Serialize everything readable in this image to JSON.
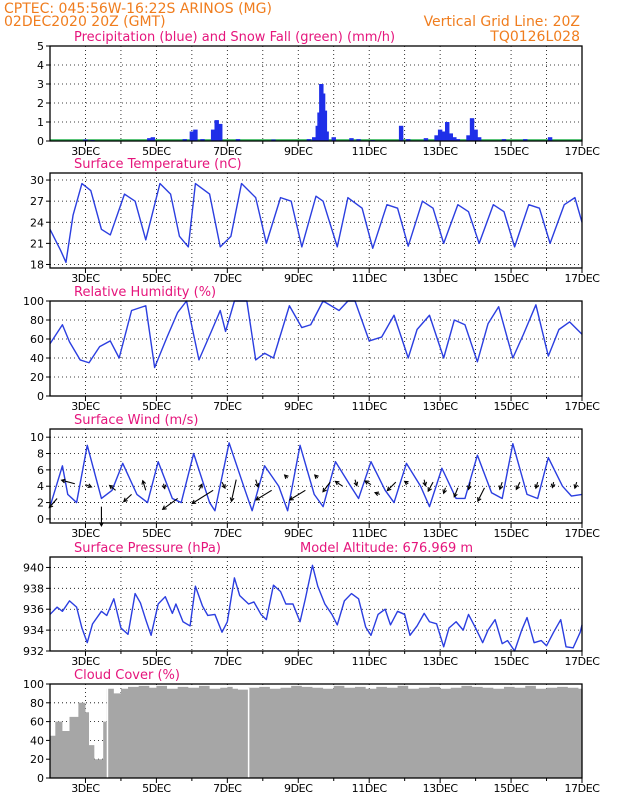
{
  "header": {
    "line1": "CPTEC:   045:56W-16:22S   ARINOS (MG)",
    "line2": "02DEC2020 20Z (GMT)",
    "grid_note": "Vertical Grid Line: 20Z",
    "run_code": "TQ0126L028"
  },
  "colors": {
    "header": "#f07d1e",
    "panel_title": "#e5157c",
    "series_line": "#2b3ee0",
    "precip": "#1f2fe8",
    "snow": "#22b14c",
    "cloud": "#a6a6a6",
    "grid": "#000000"
  },
  "x_axis": {
    "start_day": 2,
    "end_day": 17,
    "tick_labels": [
      "3DEC",
      "5DEC",
      "7DEC",
      "9DEC",
      "11DEC",
      "13DEC",
      "15DEC",
      "17DEC"
    ]
  },
  "chart_data": [
    {
      "type": "bar",
      "title": "Precipitation (blue) and Snow Fall (green) (mm/h)",
      "ylim": [
        0,
        5
      ],
      "yticks": [
        "0",
        "1",
        "2",
        "3",
        "4",
        "5"
      ],
      "series": [
        {
          "name": "Precipitation",
          "color": "#1f2fe8",
          "x": [
            3.0,
            3.2,
            4.8,
            4.9,
            5.8,
            6.0,
            6.1,
            6.3,
            6.6,
            6.7,
            6.8,
            7.3,
            8.3,
            9.3,
            9.45,
            9.55,
            9.6,
            9.65,
            9.7,
            9.75,
            9.8,
            10.0,
            10.5,
            10.7,
            11.1,
            11.9,
            12.1,
            12.6,
            12.9,
            13.0,
            13.1,
            13.2,
            13.3,
            13.4,
            13.5,
            13.8,
            13.9,
            14.0,
            14.1,
            14.8,
            15.4,
            16.1
          ],
          "values": [
            0.08,
            0.05,
            0.15,
            0.2,
            0.1,
            0.5,
            0.6,
            0.1,
            0.6,
            1.1,
            0.9,
            0.1,
            0.08,
            0.1,
            0.2,
            0.8,
            1.5,
            3.0,
            2.5,
            1.6,
            0.5,
            0.2,
            0.15,
            0.1,
            0.05,
            0.8,
            0.1,
            0.15,
            0.3,
            0.6,
            0.5,
            1.0,
            0.4,
            0.2,
            0.1,
            0.3,
            1.2,
            0.6,
            0.2,
            0.1,
            0.1,
            0.2
          ]
        },
        {
          "name": "Snow Fall",
          "color": "#22b14c",
          "x": [
            2,
            17
          ],
          "values": [
            0,
            0
          ]
        }
      ]
    },
    {
      "type": "line",
      "title": "Surface Temperature (nC)",
      "ylim": [
        17.5,
        31
      ],
      "yticks": [
        18,
        21,
        24,
        27,
        30
      ],
      "series": [
        {
          "name": "",
          "color": "#2b3ee0",
          "x": [
            2.0,
            2.3,
            2.45,
            2.65,
            2.9,
            3.15,
            3.45,
            3.7,
            4.1,
            4.4,
            4.7,
            5.1,
            5.4,
            5.65,
            5.9,
            6.1,
            6.5,
            6.8,
            7.1,
            7.4,
            7.8,
            8.1,
            8.5,
            8.8,
            9.1,
            9.5,
            9.7,
            10.1,
            10.4,
            10.8,
            11.1,
            11.5,
            11.8,
            12.1,
            12.5,
            12.8,
            13.1,
            13.5,
            13.8,
            14.1,
            14.5,
            14.8,
            15.1,
            15.5,
            15.8,
            16.1,
            16.5,
            16.8,
            17.0
          ],
          "values": [
            23,
            20,
            18.3,
            25,
            29.5,
            28.5,
            23,
            22.2,
            28,
            27,
            21.5,
            29.5,
            28,
            22,
            20.5,
            29.5,
            28,
            20.5,
            22,
            29.5,
            27.5,
            21,
            27.5,
            27,
            20.5,
            27.7,
            27,
            20.5,
            27.5,
            26,
            20.3,
            26.5,
            26,
            20.6,
            27,
            26,
            21,
            26.5,
            25.5,
            21,
            26.5,
            25.5,
            20.5,
            26.5,
            26,
            21,
            26.5,
            27.5,
            24
          ]
        }
      ]
    },
    {
      "type": "line",
      "title": "Relative Humidity (%)",
      "ylim": [
        0,
        100
      ],
      "yticks": [
        0,
        20,
        40,
        60,
        80,
        100
      ],
      "series": [
        {
          "name": "",
          "color": "#2b3ee0",
          "x": [
            2.0,
            2.35,
            2.55,
            2.85,
            3.1,
            3.4,
            3.7,
            3.95,
            4.3,
            4.7,
            4.95,
            5.3,
            5.6,
            5.85,
            6.2,
            6.55,
            6.8,
            6.95,
            7.2,
            7.55,
            7.8,
            8.05,
            8.3,
            8.75,
            9.1,
            9.35,
            9.7,
            10.15,
            10.4,
            10.6,
            11.0,
            11.35,
            11.7,
            12.1,
            12.35,
            12.7,
            13.1,
            13.4,
            13.7,
            14.05,
            14.35,
            14.65,
            15.05,
            15.35,
            15.7,
            16.05,
            16.35,
            16.65,
            17.0
          ],
          "values": [
            55,
            75,
            57,
            38,
            35,
            52,
            58,
            40,
            90,
            95,
            30,
            62,
            88,
            100,
            38,
            68,
            90,
            68,
            100,
            100,
            38,
            45,
            40,
            95,
            72,
            75,
            100,
            90,
            100,
            100,
            58,
            62,
            85,
            40,
            70,
            85,
            40,
            80,
            75,
            36,
            76,
            94,
            40,
            65,
            96,
            42,
            70,
            78,
            65
          ]
        }
      ]
    },
    {
      "type": "line",
      "title": "Surface Wind (m/s)",
      "ylim": [
        -0.5,
        11
      ],
      "yticks": [
        0,
        2,
        4,
        6,
        8,
        10
      ],
      "series": [
        {
          "name": "",
          "color": "#2b3ee0",
          "x": [
            2.0,
            2.35,
            2.5,
            2.75,
            3.05,
            3.45,
            3.75,
            4.05,
            4.45,
            4.75,
            5.05,
            5.45,
            5.7,
            6.05,
            6.5,
            6.65,
            7.05,
            7.5,
            7.7,
            8.05,
            8.45,
            8.7,
            9.05,
            9.45,
            9.7,
            10.05,
            10.45,
            10.7,
            11.05,
            11.45,
            11.7,
            12.05,
            12.45,
            12.7,
            13.05,
            13.45,
            13.7,
            14.05,
            14.45,
            14.75,
            15.05,
            15.45,
            15.75,
            16.05,
            16.45,
            16.7,
            17.0
          ],
          "values": [
            1.5,
            6.5,
            3.0,
            2.0,
            9.0,
            2.5,
            3.5,
            6.8,
            3.0,
            2.0,
            7.0,
            2.5,
            2.0,
            8.0,
            2.0,
            1.0,
            9.3,
            3.5,
            1.0,
            6.5,
            4.0,
            1.0,
            9.0,
            3.0,
            1.5,
            7.0,
            4.2,
            2.5,
            7.0,
            3.5,
            2.0,
            6.8,
            4.0,
            1.5,
            6.2,
            2.5,
            2.5,
            7.8,
            3.2,
            2.5,
            9.2,
            3.0,
            2.5,
            7.5,
            4.0,
            2.8,
            3.0
          ]
        }
      ],
      "wind_vectors": [
        {
          "x": 2.2,
          "y": 2.5,
          "u": -1.3,
          "v": -1.5
        },
        {
          "x": 2.7,
          "y": 4.3,
          "u": -2.2,
          "v": 0.6
        },
        {
          "x": 3.0,
          "y": 4.2,
          "u": 1.0,
          "v": -0.4
        },
        {
          "x": 3.45,
          "y": 1.5,
          "u": 0.0,
          "v": -3.2
        },
        {
          "x": 3.85,
          "y": 3.5,
          "u": -1.0,
          "v": 0.8
        },
        {
          "x": 4.3,
          "y": 3.0,
          "u": -1.3,
          "v": -1.2
        },
        {
          "x": 4.7,
          "y": 3.5,
          "u": -0.5,
          "v": 1.6
        },
        {
          "x": 5.2,
          "y": 4.3,
          "u": 0.2,
          "v": -0.8
        },
        {
          "x": 5.6,
          "y": 2.5,
          "u": -2.5,
          "v": -1.8
        },
        {
          "x": 6.2,
          "y": 3.5,
          "u": 0.5,
          "v": 1.0
        },
        {
          "x": 6.6,
          "y": 3.5,
          "u": -3.5,
          "v": -2.2
        },
        {
          "x": 6.85,
          "y": 4.5,
          "u": 0.5,
          "v": -1.0
        },
        {
          "x": 7.25,
          "y": 4.8,
          "u": -0.8,
          "v": -3.6
        },
        {
          "x": 7.8,
          "y": 4.8,
          "u": 0.4,
          "v": -1.2
        },
        {
          "x": 8.25,
          "y": 3.5,
          "u": -2.6,
          "v": -1.6
        },
        {
          "x": 8.7,
          "y": 5.0,
          "u": -0.5,
          "v": 0.5
        },
        {
          "x": 9.2,
          "y": 3.5,
          "u": -2.6,
          "v": -1.6
        },
        {
          "x": 9.55,
          "y": 5.0,
          "u": -0.5,
          "v": 0.5
        },
        {
          "x": 9.9,
          "y": 4.5,
          "u": -1.2,
          "v": -1.6
        },
        {
          "x": 10.25,
          "y": 4.0,
          "u": -1.2,
          "v": 0.8
        },
        {
          "x": 10.6,
          "y": 4.8,
          "u": 0.3,
          "v": -1.0
        },
        {
          "x": 11.05,
          "y": 4.2,
          "u": -1.0,
          "v": 0.6
        },
        {
          "x": 11.3,
          "y": 3.0,
          "u": -0.8,
          "v": 0.3
        },
        {
          "x": 11.75,
          "y": 4.5,
          "u": -1.4,
          "v": -1.4
        },
        {
          "x": 12.1,
          "y": 4.3,
          "u": -0.6,
          "v": 0.4
        },
        {
          "x": 12.55,
          "y": 4.8,
          "u": 0.2,
          "v": -1.0
        },
        {
          "x": 12.8,
          "y": 4.5,
          "u": -0.8,
          "v": -1.5
        },
        {
          "x": 13.15,
          "y": 3.8,
          "u": -0.3,
          "v": -0.9
        },
        {
          "x": 13.5,
          "y": 3.8,
          "u": -0.6,
          "v": -1.5
        },
        {
          "x": 13.85,
          "y": 4.5,
          "u": -0.3,
          "v": -1.2
        },
        {
          "x": 14.25,
          "y": 3.8,
          "u": -1.1,
          "v": -2.2
        },
        {
          "x": 14.75,
          "y": 4.5,
          "u": -0.4,
          "v": -1.2
        },
        {
          "x": 15.25,
          "y": 4.5,
          "u": -0.6,
          "v": -1.2
        },
        {
          "x": 15.75,
          "y": 4.5,
          "u": -0.3,
          "v": -1.0
        },
        {
          "x": 16.2,
          "y": 4.5,
          "u": -0.2,
          "v": -0.9
        },
        {
          "x": 16.85,
          "y": 4.5,
          "u": -0.3,
          "v": -1.0
        }
      ]
    },
    {
      "type": "line",
      "title": "Surface Pressure (hPa)",
      "subtitle": "Model Altitude: 676.969  m",
      "ylim": [
        932,
        941
      ],
      "yticks": [
        932,
        934,
        936,
        938,
        940
      ],
      "series": [
        {
          "name": "",
          "color": "#2b3ee0",
          "x": [
            2.0,
            2.2,
            2.35,
            2.55,
            2.75,
            2.9,
            3.05,
            3.2,
            3.45,
            3.6,
            3.8,
            4.0,
            4.2,
            4.4,
            4.55,
            4.7,
            4.85,
            5.05,
            5.25,
            5.45,
            5.55,
            5.75,
            5.95,
            6.1,
            6.3,
            6.45,
            6.65,
            6.85,
            7.0,
            7.2,
            7.35,
            7.6,
            7.75,
            7.95,
            8.1,
            8.3,
            8.5,
            8.65,
            8.85,
            9.05,
            9.2,
            9.4,
            9.55,
            9.75,
            9.95,
            10.1,
            10.3,
            10.5,
            10.7,
            10.9,
            11.05,
            11.25,
            11.45,
            11.6,
            11.8,
            12.0,
            12.15,
            12.35,
            12.55,
            12.7,
            12.9,
            13.1,
            13.25,
            13.45,
            13.65,
            13.8,
            14.0,
            14.2,
            14.35,
            14.55,
            14.75,
            14.9,
            15.1,
            15.3,
            15.45,
            15.65,
            15.85,
            16.0,
            16.2,
            16.4,
            16.55,
            16.75,
            16.95,
            17.0
          ],
          "values": [
            935.5,
            936.2,
            935.8,
            936.8,
            936.2,
            934.2,
            932.8,
            934.6,
            935.8,
            935.4,
            937.0,
            934.2,
            933.6,
            937.5,
            936.6,
            935.0,
            933.5,
            936.5,
            937.2,
            935.6,
            936.5,
            934.8,
            934.4,
            938.2,
            936.3,
            935.4,
            935.5,
            933.8,
            934.8,
            939.0,
            937.3,
            936.5,
            936.7,
            935.5,
            935.0,
            938.3,
            937.7,
            936.5,
            936.5,
            934.8,
            937.0,
            940.2,
            938.2,
            936.5,
            935.5,
            934.5,
            936.8,
            937.5,
            937.0,
            934.3,
            933.5,
            935.5,
            936.0,
            934.5,
            935.8,
            935.5,
            933.5,
            934.4,
            935.6,
            934.8,
            934.6,
            932.4,
            934.2,
            934.8,
            934.0,
            935.5,
            934.2,
            932.8,
            934.0,
            935.0,
            932.7,
            933.0,
            932.0,
            934.0,
            935.2,
            932.8,
            933.0,
            932.5,
            933.8,
            935.0,
            932.4,
            932.3,
            933.8,
            934.5
          ]
        }
      ]
    },
    {
      "type": "bar",
      "title": "Cloud Cover (%)",
      "ylim": [
        0,
        100
      ],
      "yticks": [
        0,
        20,
        40,
        60,
        80,
        100
      ],
      "series": [
        {
          "name": "",
          "color": "#a6a6a6",
          "x": [
            2.0,
            2.15,
            2.35,
            2.55,
            2.8,
            3.0,
            3.1,
            3.25,
            3.5,
            3.6,
            3.8,
            4.0,
            4.2,
            4.5,
            4.8,
            5.0,
            5.3,
            5.6,
            5.9,
            6.2,
            6.5,
            6.8,
            7.0,
            7.15,
            7.3,
            7.6,
            7.9,
            8.2,
            8.5,
            8.8,
            9.1,
            9.4,
            9.7,
            10.0,
            10.3,
            10.6,
            10.9,
            11.2,
            11.5,
            11.8,
            12.1,
            12.4,
            12.7,
            13.0,
            13.3,
            13.6,
            13.9,
            14.2,
            14.5,
            14.8,
            15.1,
            15.4,
            15.7,
            16.0,
            16.3,
            16.6,
            16.9
          ],
          "values": [
            45,
            60,
            50,
            65,
            80,
            70,
            35,
            20,
            60,
            95,
            90,
            95,
            97,
            98,
            96,
            98,
            95,
            97,
            96,
            98,
            95,
            96,
            97,
            95,
            94,
            96,
            97,
            95,
            96,
            98,
            97,
            96,
            95,
            98,
            96,
            97,
            95,
            97,
            96,
            98,
            95,
            96,
            97,
            95,
            96,
            98,
            97,
            96,
            95,
            97,
            96,
            98,
            95,
            96,
            97,
            96,
            95
          ]
        }
      ]
    }
  ]
}
